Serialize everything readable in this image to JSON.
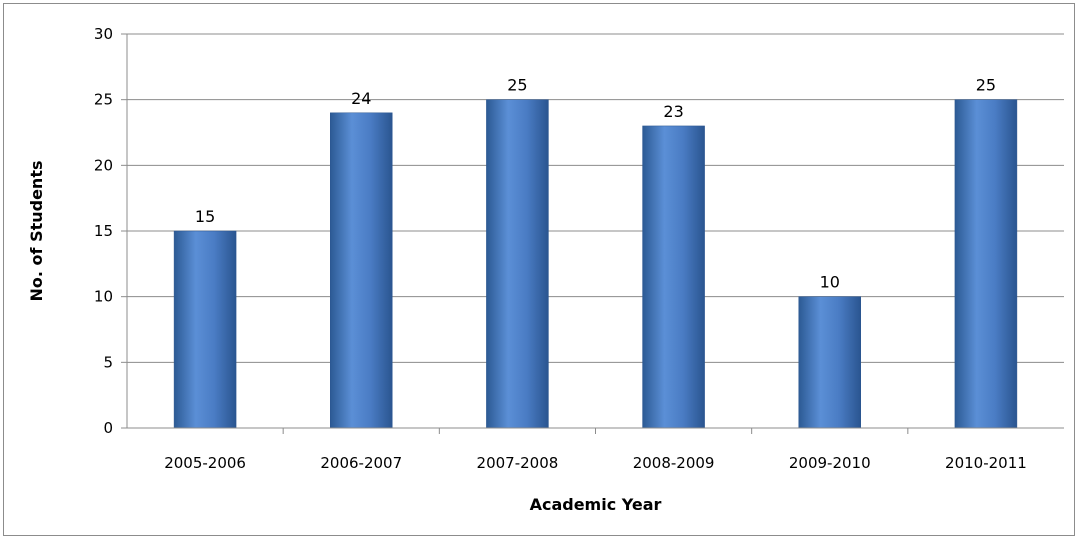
{
  "chart_data": {
    "type": "bar",
    "categories": [
      "2005-2006",
      "2006-2007",
      "2007-2008",
      "2008-2009",
      "2009-2010",
      "2010-2011"
    ],
    "values": [
      15,
      24,
      25,
      23,
      10,
      25
    ],
    "xlabel": "Academic Year",
    "ylabel": "No. of Students",
    "ylim": [
      0,
      30
    ],
    "yticks": [
      0,
      5,
      10,
      15,
      20,
      25,
      30
    ],
    "grid": true,
    "legend": "none",
    "data_labels": true,
    "colors": {
      "bar": "#4f81bd",
      "bar_dark": "#2c5a94",
      "grid": "#8c8c8c",
      "axis": "#8c8c8c"
    }
  }
}
